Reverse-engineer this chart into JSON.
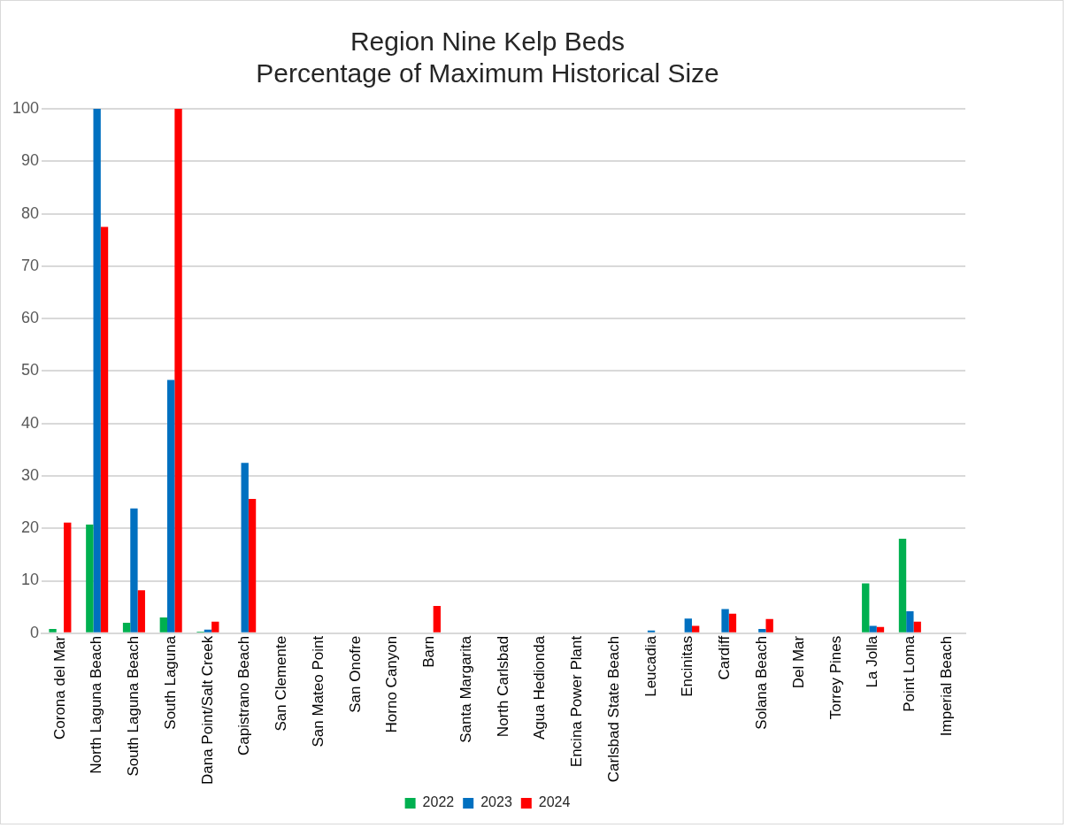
{
  "chart_data": {
    "type": "bar",
    "title": [
      "Region Nine Kelp Beds",
      "Percentage of Maximum Historical Size"
    ],
    "categories": [
      "Corona del Mar",
      "North Laguna Beach",
      "South Laguna Beach",
      "South Laguna",
      "Dana Point/Salt Creek",
      "Capistrano Beach",
      "San Clemente",
      "San Mateo Point",
      "San Onofre",
      "Horno Canyon",
      "Barn",
      "Santa Margarita",
      "North Carlsbad",
      "Agua Hedionda",
      "Encina Power Plant",
      "Carlsbad State Beach",
      "Leucadia",
      "Encinitas",
      "Cardiff",
      "Solana Beach",
      "Del Mar",
      "Torrey Pines",
      "La Jolla",
      "Point Loma",
      "Imperial Beach"
    ],
    "series": [
      {
        "name": "2022",
        "color": "#00b050",
        "values": [
          0.8,
          20.7,
          2.0,
          3.0,
          0.3,
          0,
          0,
          0,
          0,
          0,
          0,
          0,
          0,
          0,
          0,
          0,
          0,
          0,
          0,
          0,
          0,
          0,
          9.5,
          18.0,
          0
        ]
      },
      {
        "name": "2023",
        "color": "#0070c0",
        "values": [
          null,
          100,
          23.8,
          48.3,
          0.7,
          32.5,
          null,
          0,
          0,
          0,
          0,
          0,
          0,
          0,
          0,
          0,
          0.5,
          2.8,
          4.6,
          0.8,
          0,
          0,
          1.4,
          4.2,
          0
        ]
      },
      {
        "name": "2024",
        "color": "#ff0000",
        "values": [
          21.1,
          77.5,
          8.2,
          100,
          2.2,
          25.6,
          null,
          0,
          0,
          0,
          5.2,
          0,
          0,
          0,
          0,
          0,
          0,
          1.4,
          3.7,
          2.7,
          0,
          0,
          1.2,
          2.2,
          0
        ]
      }
    ],
    "ylim": [
      0,
      100
    ],
    "yticks": [
      0,
      10,
      20,
      30,
      40,
      50,
      60,
      70,
      80,
      90,
      100
    ],
    "grid": "y",
    "legend": "bottom"
  }
}
